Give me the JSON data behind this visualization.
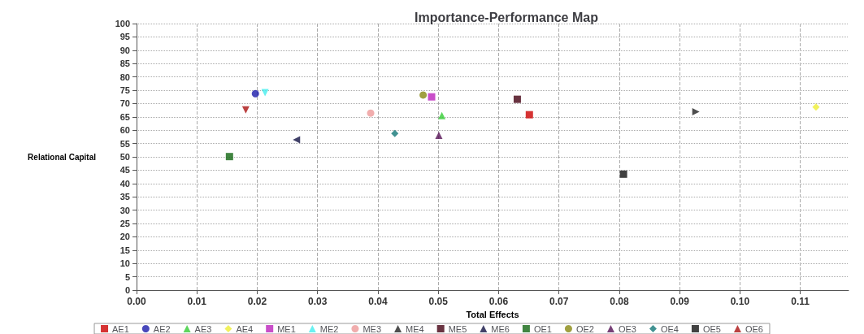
{
  "chart_data": {
    "type": "scatter",
    "title": "Importance-Performance Map",
    "xlabel": "Total Effects",
    "ylabel": "Relational Capital",
    "xlim": [
      0,
      0.118
    ],
    "ylim": [
      0,
      100
    ],
    "xticks": [
      {
        "value": 0,
        "label": "0.00"
      },
      {
        "value": 0.01,
        "label": "0.01"
      },
      {
        "value": 0.02,
        "label": "0.02"
      },
      {
        "value": 0.03,
        "label": "0.03"
      },
      {
        "value": 0.04,
        "label": "0.04"
      },
      {
        "value": 0.05,
        "label": "0.05"
      },
      {
        "value": 0.06,
        "label": "0.06"
      },
      {
        "value": 0.07,
        "label": "0.07"
      },
      {
        "value": 0.08,
        "label": "0.08"
      },
      {
        "value": 0.09,
        "label": "0.09"
      },
      {
        "value": 0.1,
        "label": "0.10"
      },
      {
        "value": 0.11,
        "label": "0.11"
      }
    ],
    "yticks": [
      0,
      5,
      10,
      15,
      20,
      25,
      30,
      35,
      40,
      45,
      50,
      55,
      60,
      65,
      70,
      75,
      80,
      85,
      90,
      95,
      100
    ],
    "grid": true,
    "legend": "bottom",
    "line_style": "dashed",
    "series": [
      {
        "name": "AE1",
        "color": "#cc0000",
        "marker": "square",
        "x": [
          0.0651
        ],
        "values": [
          65.8
        ]
      },
      {
        "name": "AE2",
        "color": "#1a1aaa",
        "marker": "circle",
        "x": [
          0.0197
        ],
        "values": [
          73.7
        ]
      },
      {
        "name": "AE3",
        "color": "#33cc33",
        "marker": "triangle",
        "x": [
          0.0506
        ],
        "values": [
          65.5
        ]
      },
      {
        "name": "AE4",
        "color": "#eeee33",
        "marker": "diamond",
        "x": [
          0.1126
        ],
        "values": [
          68.7
        ]
      },
      {
        "name": "ME1",
        "color": "#bb22bb",
        "marker": "square",
        "x": [
          0.0489
        ],
        "values": [
          72.5
        ]
      },
      {
        "name": "ME2",
        "color": "#44eeee",
        "marker": "triangle",
        "x": [
          0.0213
        ],
        "values": [
          74.1
        ]
      },
      {
        "name": "ME3",
        "color": "#ee9999",
        "marker": "circle",
        "x": [
          0.0388
        ],
        "values": [
          66.4
        ]
      },
      {
        "name": "ME4",
        "color": "#222222",
        "marker": "triangle",
        "x": [
          0.0927
        ],
        "values": [
          66.9
        ]
      },
      {
        "name": "ME5",
        "color": "#440011",
        "marker": "square",
        "x": [
          0.0631
        ],
        "values": [
          71.6
        ]
      },
      {
        "name": "ME6",
        "color": "#111144",
        "marker": "triangle",
        "x": [
          0.0265
        ],
        "values": [
          56.4
        ]
      },
      {
        "name": "OE1",
        "color": "#116611",
        "marker": "square",
        "x": [
          0.0154
        ],
        "values": [
          50.1
        ]
      },
      {
        "name": "OE2",
        "color": "#888811",
        "marker": "circle",
        "x": [
          0.0475
        ],
        "values": [
          73.2
        ]
      },
      {
        "name": "OE3",
        "color": "#551155",
        "marker": "triangle",
        "x": [
          0.0501
        ],
        "values": [
          58.1
        ]
      },
      {
        "name": "OE4",
        "color": "#117777",
        "marker": "diamond",
        "x": [
          0.0428
        ],
        "values": [
          58.8
        ]
      },
      {
        "name": "OE5",
        "color": "#111111",
        "marker": "square",
        "x": [
          0.0807
        ],
        "values": [
          43.5
        ]
      },
      {
        "name": "OE6",
        "color": "#aa1111",
        "marker": "triangle",
        "x": [
          0.0181
        ],
        "values": [
          67.6
        ]
      }
    ]
  }
}
